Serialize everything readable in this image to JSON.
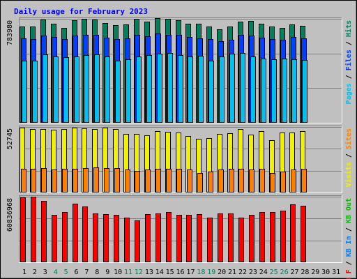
{
  "chart_data": {
    "type": "bar",
    "title": "Daily usage for February 2023",
    "categories": [
      "1",
      "2",
      "3",
      "4",
      "5",
      "6",
      "7",
      "8",
      "9",
      "10",
      "11",
      "12",
      "13",
      "14",
      "15",
      "16",
      "17",
      "18",
      "19",
      "20",
      "21",
      "22",
      "23",
      "24",
      "25",
      "26",
      "27",
      "28",
      "29",
      "30",
      "31"
    ],
    "weekend_days": [
      4,
      5,
      11,
      12,
      18,
      19,
      25,
      26
    ],
    "panels": [
      {
        "name": "hits-files-pages",
        "ymax_label": "783980",
        "ymax": 783980,
        "right_labels": [
          {
            "text": "Pages",
            "color": "#00c0f0"
          },
          {
            "text": "Files",
            "color": "#0040ff"
          },
          {
            "text": "Hits",
            "color": "#00805c"
          }
        ],
        "series": [
          {
            "name": "Hits",
            "color": "#00805c",
            "values": [
              728500,
              724100,
              781000,
              745000,
              715800,
              774100,
              781700,
              780600,
              752000,
              738000,
              741600,
              782400,
              764600,
              788600,
              782300,
              771700,
              749600,
              747000,
              725600,
              702500,
              728500,
              763500,
              766500,
              745600,
              726400,
              717700,
              741600,
              733400,
              null,
              null,
              null
            ]
          },
          {
            "name": "Files",
            "color": "#0040ff",
            "values": [
              634400,
              630200,
              658300,
              645000,
              629000,
              655800,
              662500,
              661000,
              640000,
              632000,
              638000,
              664200,
              650000,
              672400,
              665300,
              662200,
              647400,
              634400,
              630700,
              617400,
              628400,
              663400,
              657000,
              643000,
              633000,
              626400,
              646000,
              634600,
              null,
              null,
              null
            ]
          },
          {
            "name": "Pages",
            "color": "#00c0f0",
            "values": [
              470000,
              469200,
              516300,
              500500,
              495600,
              502000,
              511900,
              514100,
              502000,
              470500,
              476900,
              500500,
              509000,
              520300,
              524000,
              508000,
              502000,
              504100,
              470300,
              498800,
              518300,
              526500,
              500000,
              482000,
              476400,
              482000,
              478300,
              474000,
              null,
              null,
              null
            ]
          }
        ]
      },
      {
        "name": "visits-sites",
        "ymax_label": "52745",
        "ymax": 52745,
        "right_labels": [
          {
            "text": "Visits",
            "color": "#f0f000"
          },
          {
            "text": "Sites",
            "color": "#ff8000"
          }
        ],
        "series": [
          {
            "name": "Visits",
            "color": "#f0f000",
            "values": [
              52180,
              51080,
              51080,
              50360,
              50900,
              52180,
              51800,
              50900,
              52180,
              51080,
              47080,
              46900,
              45960,
              49640,
              48920,
              48000,
              45600,
              43330,
              43690,
              47270,
              47800,
              50900,
              46340,
              49640,
              42250,
              48000,
              48000,
              49460,
              null,
              null,
              null
            ]
          },
          {
            "name": "Sites",
            "color": "#ff8000",
            "values": [
              19200,
              19200,
              19360,
              18480,
              18850,
              19200,
              19750,
              19930,
              19560,
              19370,
              18650,
              17560,
              18650,
              18830,
              18830,
              19200,
              18650,
              15780,
              16680,
              18470,
              18830,
              18850,
              18480,
              18830,
              15600,
              17000,
              18650,
              19200,
              null,
              null,
              null
            ]
          }
        ]
      },
      {
        "name": "kbytes",
        "ymax_label": "60836968",
        "ymax": 60836968,
        "right_labels": [
          {
            "text": "KB F",
            "color": "#ff0000"
          },
          {
            "text": "KB In",
            "color": "#0080ff"
          },
          {
            "text": "KB Out",
            "color": "#00c000"
          }
        ],
        "series": [
          {
            "name": "KB F",
            "color": "#ff0000",
            "values": [
              59950000,
              60800000,
              57250000,
              43900000,
              46500000,
              54250000,
              51600000,
              45600000,
              44700000,
              43900000,
              41300000,
              38700000,
              44700000,
              45600000,
              46500000,
              43900000,
              43900000,
              44700000,
              41300000,
              45600000,
              45600000,
              41300000,
              43900000,
              46500000,
              46500000,
              48200000,
              53400000,
              52500000,
              null,
              null,
              null
            ]
          }
        ]
      }
    ]
  }
}
